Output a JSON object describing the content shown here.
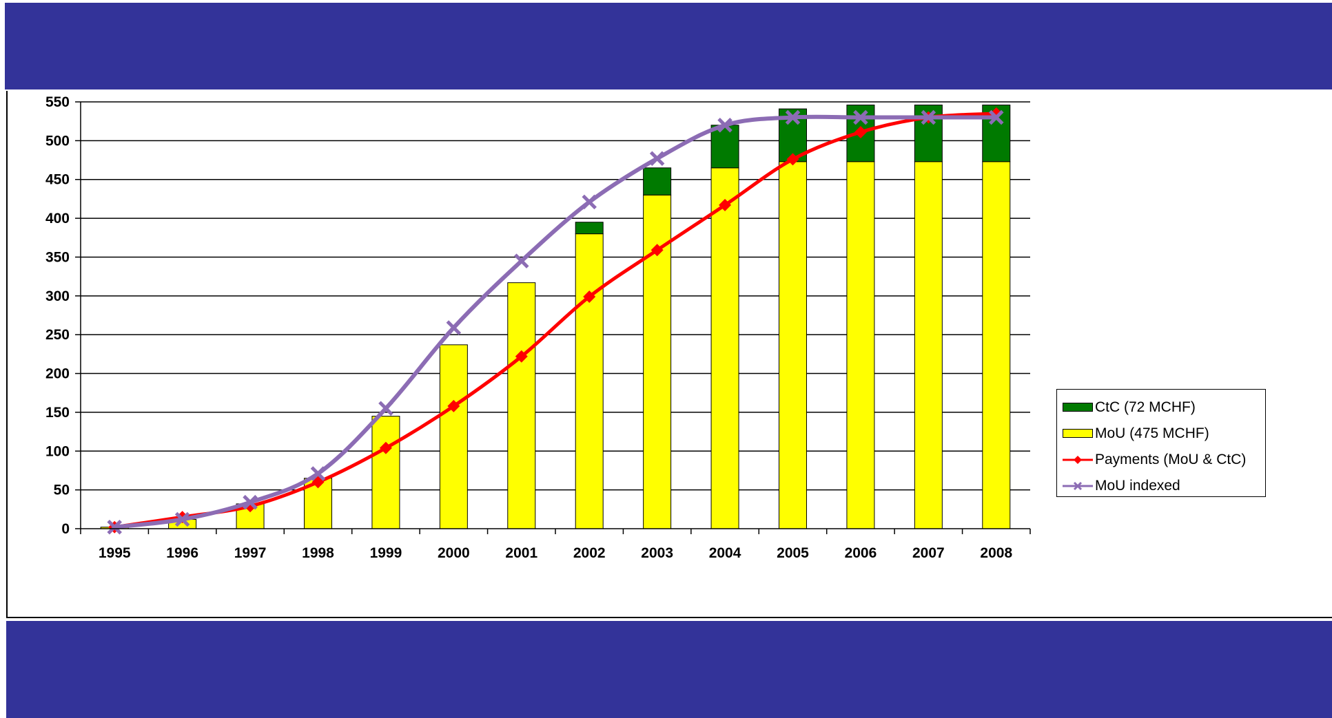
{
  "colors": {
    "band": "#333399",
    "ctc": "#007a00",
    "mou": "#ffff00",
    "payments": "#ff0000",
    "mou_indexed": "#8c6cb4"
  },
  "legend": {
    "items": [
      {
        "label": "CtC (72 MCHF)",
        "kind": "box",
        "color": "#007a00"
      },
      {
        "label": "MoU (475 MCHF)",
        "kind": "box",
        "color": "#ffff00"
      },
      {
        "label": "Payments (MoU & CtC)",
        "kind": "line-diamond",
        "color": "#ff0000"
      },
      {
        "label": "MoU indexed",
        "kind": "line-x",
        "color": "#8c6cb4"
      }
    ]
  },
  "chart_data": {
    "type": "bar",
    "stacked": true,
    "title": "",
    "xlabel": "",
    "ylabel": "",
    "ylim": [
      0,
      550
    ],
    "yticks": [
      0,
      50,
      100,
      150,
      200,
      250,
      300,
      350,
      400,
      450,
      500,
      550
    ],
    "grid": true,
    "legend_position": "right",
    "categories": [
      "1995",
      "1996",
      "1997",
      "1998",
      "1999",
      "2000",
      "2001",
      "2002",
      "2003",
      "2004",
      "2005",
      "2006",
      "2007",
      "2008"
    ],
    "series": [
      {
        "name": "MoU (475 MCHF)",
        "type": "bar",
        "values": [
          2,
          12,
          32,
          65,
          145,
          237,
          317,
          380,
          430,
          465,
          473,
          473,
          473,
          473
        ]
      },
      {
        "name": "CtC (72 MCHF)",
        "type": "bar",
        "values": [
          0,
          0,
          0,
          0,
          0,
          0,
          0,
          15,
          35,
          55,
          68,
          73,
          73,
          73
        ]
      },
      {
        "name": "Payments (MoU & CtC)",
        "type": "line",
        "values": [
          2,
          15,
          29,
          60,
          104,
          158,
          222,
          299,
          359,
          417,
          476,
          511,
          530,
          535
        ]
      },
      {
        "name": "MoU indexed",
        "type": "line",
        "values": [
          2,
          12,
          34,
          71,
          155,
          259,
          345,
          421,
          477,
          520,
          530,
          530,
          530,
          530
        ]
      }
    ]
  }
}
